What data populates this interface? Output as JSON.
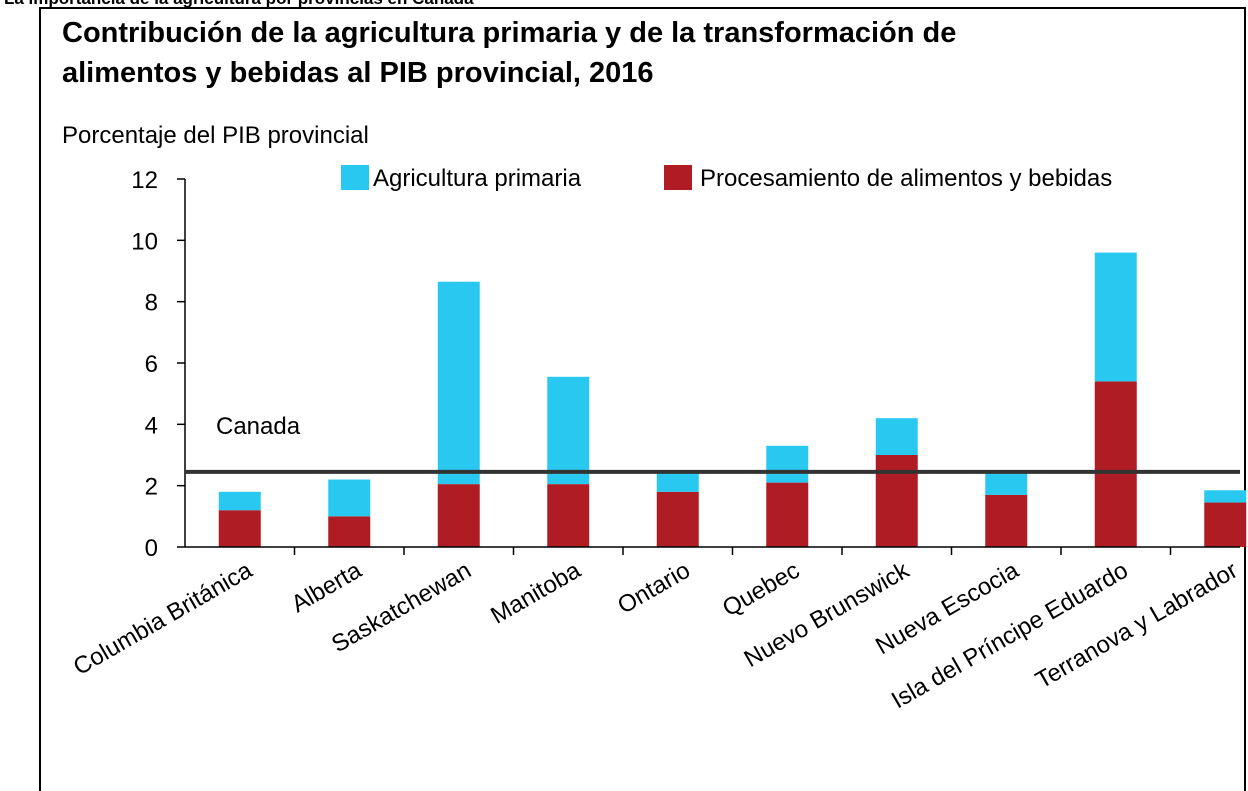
{
  "header": "La importancia de la agricultura por provincias en Canadá",
  "chart_data": {
    "type": "stacked_bar",
    "title": "Contribución de la agricultura primaria y de la transformación de alimentos y bebidas al PIB provincial, 2016",
    "title_lines": [
      "Contribución de la agricultura primaria y de la transformación de",
      "alimentos y bebidas al PIB provincial, 2016"
    ],
    "y_label": "Porcentaje del PIB provincial",
    "categories": [
      "Columbia Británica",
      "Alberta",
      "Saskatchewan",
      "Manitoba",
      "Ontario",
      "Quebec",
      "Nuevo Brunswick",
      "Nueva Escocia",
      "Isla del Príncipe Eduardo",
      "Terranova y Labrador"
    ],
    "series": [
      {
        "name": "Agricultura primaria",
        "color": "#29c8f0",
        "values": [
          0.6,
          1.2,
          6.6,
          3.5,
          0.6,
          1.2,
          1.2,
          0.8,
          4.2,
          0.4
        ]
      },
      {
        "name": "Procesamiento de alimentos y bebidas",
        "color": "#b01c24",
        "values": [
          1.2,
          1.0,
          2.05,
          2.05,
          1.8,
          2.1,
          3.0,
          1.7,
          5.4,
          1.45
        ]
      }
    ],
    "stack_order": [
      "Procesamiento de alimentos y bebidas",
      "Agricultura primaria"
    ],
    "reference_line": {
      "label": "Canada",
      "value": 2.45
    },
    "ylim": [
      0,
      12
    ],
    "yticks": [
      0,
      2,
      4,
      6,
      8,
      10,
      12
    ]
  }
}
